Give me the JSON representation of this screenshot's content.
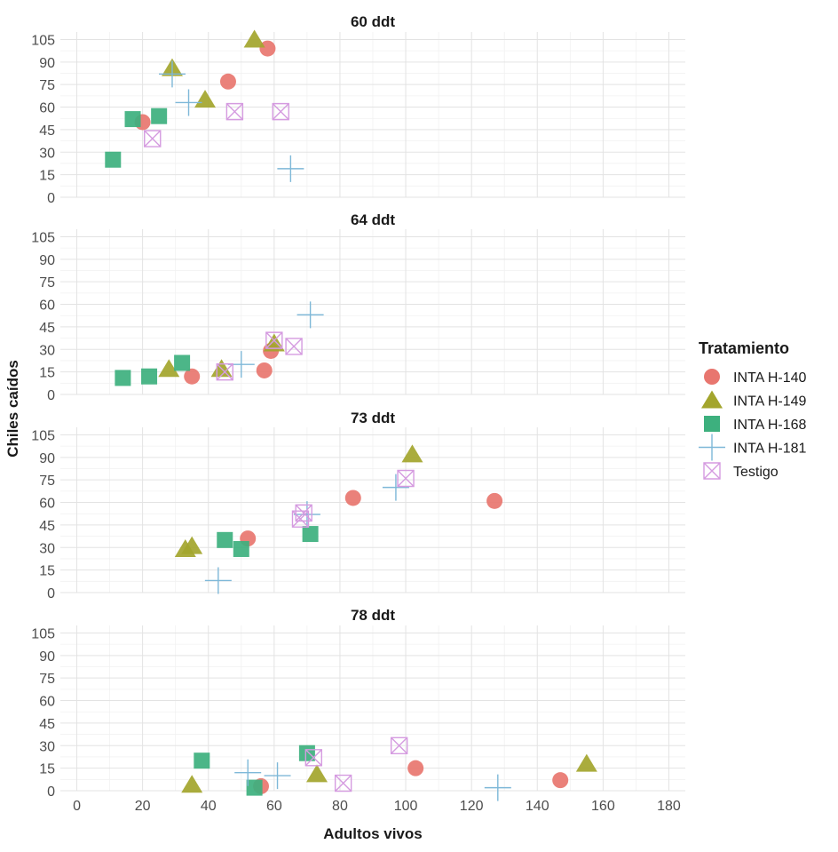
{
  "chart_data": {
    "type": "scatter",
    "xlabel": "Adultos vivos",
    "ylabel": "Chiles caídos",
    "xlim": [
      -5,
      185
    ],
    "ylim": [
      0,
      110
    ],
    "x_ticks": [
      0,
      20,
      40,
      60,
      80,
      100,
      120,
      140,
      160,
      180
    ],
    "y_ticks": [
      0,
      15,
      30,
      45,
      60,
      75,
      90,
      105
    ],
    "legend": {
      "title": "Tratamiento",
      "position": "right",
      "entries": [
        {
          "name": "INTA H-140",
          "shape": "circle",
          "color": "#E8766F"
        },
        {
          "name": "INTA H-149",
          "shape": "triangle",
          "color": "#A3A52D"
        },
        {
          "name": "INTA H-168",
          "shape": "square",
          "color": "#3DB07E"
        },
        {
          "name": "INTA H-181",
          "shape": "plus",
          "color": "#7EB8D8"
        },
        {
          "name": "Testigo",
          "shape": "boxcross",
          "color": "#D59BE0"
        }
      ]
    },
    "panels": [
      {
        "title": "60 ddt",
        "series": {
          "INTA H-140": [
            [
              20,
              50
            ],
            [
              46,
              77
            ],
            [
              58,
              99
            ]
          ],
          "INTA H-149": [
            [
              29,
              86
            ],
            [
              39,
              65
            ],
            [
              54,
              105
            ]
          ],
          "INTA H-168": [
            [
              11,
              25
            ],
            [
              17,
              52
            ],
            [
              25,
              54
            ]
          ],
          "INTA H-181": [
            [
              29,
              82
            ],
            [
              34,
              63
            ],
            [
              65,
              19
            ]
          ],
          "Testigo": [
            [
              23,
              39
            ],
            [
              48,
              57
            ],
            [
              62,
              57
            ]
          ]
        }
      },
      {
        "title": "64 ddt",
        "series": {
          "INTA H-140": [
            [
              35,
              12
            ],
            [
              57,
              16
            ],
            [
              59,
              29
            ]
          ],
          "INTA H-149": [
            [
              28,
              17
            ],
            [
              44,
              17
            ],
            [
              60,
              34
            ]
          ],
          "INTA H-168": [
            [
              14,
              11
            ],
            [
              22,
              12
            ],
            [
              32,
              21
            ]
          ],
          "INTA H-181": [
            [
              50,
              20
            ],
            [
              71,
              53
            ]
          ],
          "Testigo": [
            [
              45,
              15
            ],
            [
              60,
              36
            ],
            [
              66,
              32
            ]
          ]
        }
      },
      {
        "title": "73 ddt",
        "series": {
          "INTA H-140": [
            [
              52,
              36
            ],
            [
              84,
              63
            ],
            [
              127,
              61
            ]
          ],
          "INTA H-149": [
            [
              33,
              29
            ],
            [
              35,
              31
            ],
            [
              102,
              92
            ]
          ],
          "INTA H-168": [
            [
              45,
              35
            ],
            [
              50,
              29
            ],
            [
              71,
              39
            ]
          ],
          "INTA H-181": [
            [
              43,
              8
            ],
            [
              70,
              52
            ],
            [
              97,
              70
            ]
          ],
          "Testigo": [
            [
              68,
              49
            ],
            [
              69,
              53
            ],
            [
              100,
              76
            ]
          ]
        }
      },
      {
        "title": "78 ddt",
        "series": {
          "INTA H-140": [
            [
              56,
              3
            ],
            [
              103,
              15
            ],
            [
              147,
              7
            ]
          ],
          "INTA H-149": [
            [
              35,
              4
            ],
            [
              73,
              11
            ],
            [
              155,
              18
            ]
          ],
          "INTA H-168": [
            [
              38,
              20
            ],
            [
              54,
              2
            ],
            [
              70,
              25
            ]
          ],
          "INTA H-181": [
            [
              52,
              12
            ],
            [
              61,
              10
            ],
            [
              128,
              2
            ]
          ],
          "Testigo": [
            [
              72,
              22
            ],
            [
              81,
              5
            ],
            [
              98,
              30
            ]
          ]
        }
      }
    ]
  }
}
